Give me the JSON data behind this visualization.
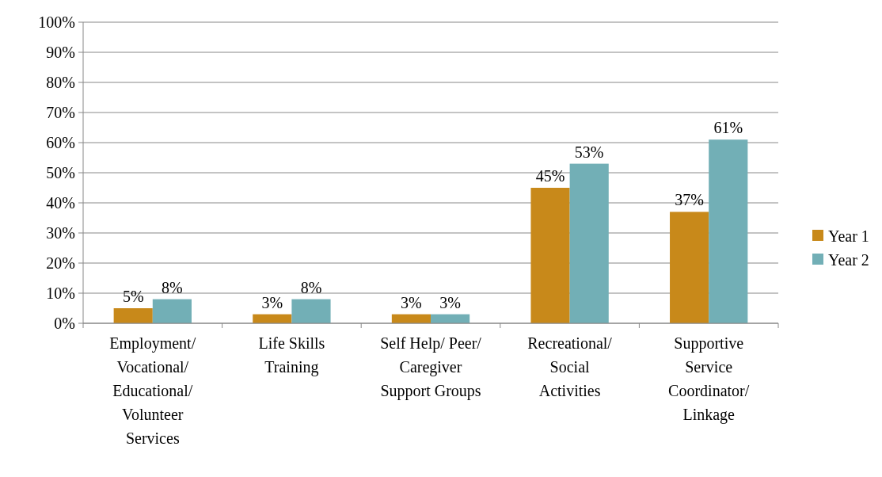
{
  "chart_data": {
    "type": "bar",
    "categories": [
      "Employment/ Vocational/ Educational/ Volunteer Services",
      "Life Skills Training",
      "Self Help/ Peer/ Caregiver Support Groups",
      "Recreational/ Social Activities",
      "Supportive Service Coordinator/ Linkage"
    ],
    "series": [
      {
        "name": "Year 1",
        "color": "#c8891a",
        "values": [
          5,
          3,
          3,
          45,
          37
        ],
        "value_labels": [
          "5%",
          "3%",
          "3%",
          "45%",
          "37%"
        ]
      },
      {
        "name": "Year 2",
        "color": "#72afb6",
        "values": [
          8,
          8,
          3,
          53,
          61
        ],
        "value_labels": [
          "8%",
          "8%",
          "3%",
          "53%",
          "61%"
        ]
      }
    ],
    "ylim": [
      0,
      100
    ],
    "yticks": [
      {
        "value": 0,
        "label": "0%"
      },
      {
        "value": 10,
        "label": "10%"
      },
      {
        "value": 20,
        "label": "20%"
      },
      {
        "value": 30,
        "label": "30%"
      },
      {
        "value": 40,
        "label": "40%"
      },
      {
        "value": 50,
        "label": "50%"
      },
      {
        "value": 60,
        "label": "60%"
      },
      {
        "value": 70,
        "label": "70%"
      },
      {
        "value": 80,
        "label": "80%"
      },
      {
        "value": 90,
        "label": "90%"
      },
      {
        "value": 100,
        "label": "100%"
      }
    ],
    "grid": "y",
    "legend": "right"
  }
}
